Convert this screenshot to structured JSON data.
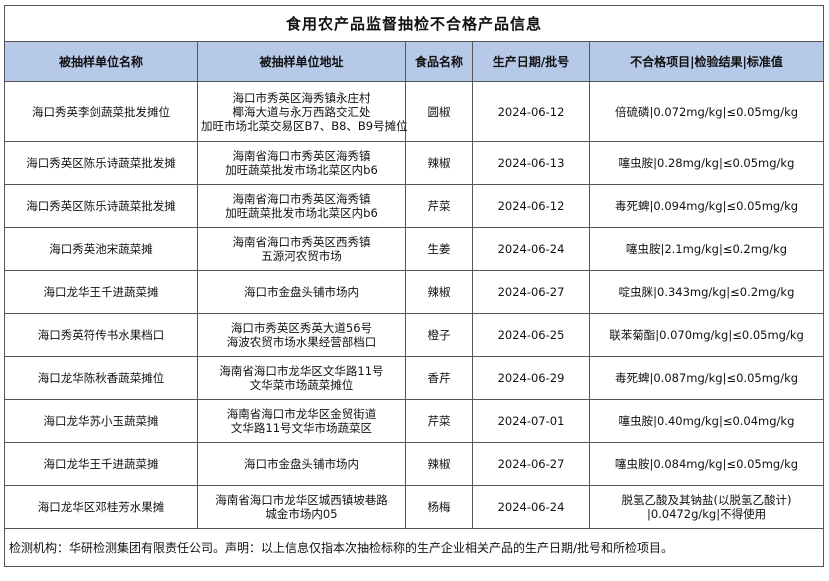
{
  "title": "食用农产品监督抽检不合格产品信息",
  "headers": [
    "被抽样单位名称",
    "被抽样单位地址",
    "食品名称",
    "生产日期/批号",
    "不合格项目|检验结果|标准值"
  ],
  "rows": [
    {
      "unit": "海口秀英李剑蔬菜批发摊位",
      "address": [
        "海口市秀英区海秀镇永庄村",
        "椰海大道与永万西路交汇处",
        "加旺市场北菜交易区B7、B8、B9号摊位"
      ],
      "food": "圆椒",
      "date": "2024-06-12",
      "result": [
        "倍硫磷|0.072mg/kg|≤0.05mg/kg"
      ]
    },
    {
      "unit": "海口秀英区陈乐诗蔬菜批发摊",
      "address": [
        "海南省海口市秀英区海秀镇",
        "加旺蔬菜批发市场北菜区内b6"
      ],
      "food": "辣椒",
      "date": "2024-06-13",
      "result": [
        "噻虫胺|0.28mg/kg|≤0.05mg/kg"
      ]
    },
    {
      "unit": "海口秀英区陈乐诗蔬菜批发摊",
      "address": [
        "海南省海口市秀英区海秀镇",
        "加旺蔬菜批发市场北菜区内b6"
      ],
      "food": "芹菜",
      "date": "2024-06-12",
      "result": [
        "毒死蜱|0.094mg/kg|≤0.05mg/kg"
      ]
    },
    {
      "unit": "海口秀英池宋蔬菜摊",
      "address": [
        "海南省海口市秀英区西秀镇",
        "五源河农贸市场"
      ],
      "food": "生姜",
      "date": "2024-06-24",
      "result": [
        "噻虫胺|2.1mg/kg|≤0.2mg/kg"
      ]
    },
    {
      "unit": "海口龙华王千进蔬菜摊",
      "address": [
        "海口市金盘头铺市场内"
      ],
      "food": "辣椒",
      "date": "2024-06-27",
      "result": [
        "啶虫脒|0.343mg/kg|≤0.2mg/kg"
      ]
    },
    {
      "unit": "海口秀英符传书水果档口",
      "address": [
        "海口市秀英区秀英大道56号",
        "海波农贸市场水果经营部档口"
      ],
      "food": "橙子",
      "date": "2024-06-25",
      "result": [
        "联苯菊酯|0.070mg/kg|≤0.05mg/kg"
      ]
    },
    {
      "unit": "海口龙华陈秋香蔬菜摊位",
      "address": [
        "海南省海口市龙华区文华路11号",
        "文华菜市场蔬菜摊位"
      ],
      "food": "香芹",
      "date": "2024-06-29",
      "result": [
        "毒死蜱|0.087mg/kg|≤0.05mg/kg"
      ]
    },
    {
      "unit": "海口龙华苏小玉蔬菜摊",
      "address": [
        "海南省海口市龙华区金贸街道",
        "文华路11号文华市场蔬菜区"
      ],
      "food": "芹菜",
      "date": "2024-07-01",
      "result": [
        "噻虫胺|0.40mg/kg|≤0.04mg/kg"
      ]
    },
    {
      "unit": "海口龙华王千进蔬菜摊",
      "address": [
        "海口市金盘头铺市场内"
      ],
      "food": "辣椒",
      "date": "2024-06-27",
      "result": [
        "噻虫胺|0.084mg/kg|≤0.05mg/kg"
      ]
    },
    {
      "unit": "海口龙华区邓桂芳水果摊",
      "address": [
        "海南省海口市龙华区城西镇坡巷路",
        "城金市场内05"
      ],
      "food": "杨梅",
      "date": "2024-06-24",
      "result": [
        "脱氢乙酸及其钠盐(以脱氢乙酸计)",
        "|0.0472g/kg|不得使用"
      ]
    }
  ],
  "footer": "检测机构：华研检测集团有限责任公司。声明：以上信息仅指本次抽检标称的生产企业相关产品的生产日期/批号和所检项目。"
}
